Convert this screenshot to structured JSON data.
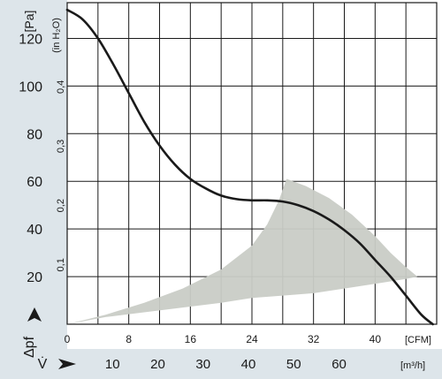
{
  "chart_data": {
    "type": "line",
    "title": "",
    "pressure_unit": "[Pa]",
    "inh2o_unit": "(in H₂O)",
    "xlabel_cfm_unit": "[CFM]",
    "xlabel_m3h_unit": "[m³/h]",
    "ylabel_symbol": "Δpf",
    "xlabel_symbol": "V̇",
    "xlim": [
      0,
      48
    ],
    "ylim": [
      0,
      135
    ],
    "x_ticks_cfm": [
      "0",
      "8",
      "16",
      "24",
      "32",
      "40"
    ],
    "x_ticks_cfm_values": [
      0,
      8,
      16,
      24,
      32,
      40
    ],
    "x_ticks_m3h": [
      "10",
      "20",
      "30",
      "40",
      "50",
      "60"
    ],
    "x_ticks_m3h_values": [
      10,
      20,
      30,
      40,
      50,
      60
    ],
    "y_ticks_pa": [
      "20",
      "40",
      "60",
      "80",
      "100",
      "120"
    ],
    "y_ticks_pa_values": [
      20,
      40,
      60,
      80,
      100,
      120
    ],
    "y_ticks_inh2o": [
      "0,1",
      "0,2",
      "0,3",
      "0,4"
    ],
    "y_ticks_inh2o_values": [
      0.1,
      0.2,
      0.3,
      0.4
    ],
    "grid": true,
    "series": [
      {
        "x": [
          0,
          2,
          4,
          6,
          8,
          10,
          12,
          14,
          16,
          18,
          20,
          22,
          24,
          26,
          28,
          30,
          32,
          34,
          36,
          38,
          40,
          42,
          44,
          46,
          47.5
        ],
        "y": [
          132,
          128,
          120,
          109,
          97,
          85,
          75,
          67,
          61,
          57,
          54,
          52.5,
          52,
          52,
          51.5,
          50,
          47.5,
          44,
          39.5,
          34,
          27,
          20,
          12,
          4,
          0
        ]
      }
    ],
    "shaded_region": {
      "color": "#c9ccc6",
      "x": [
        0,
        5,
        10,
        15,
        20,
        24,
        26,
        27.5,
        28.5,
        31,
        34,
        37,
        40,
        42,
        44,
        45.5,
        44,
        40,
        36,
        32,
        28,
        24,
        20,
        15,
        10,
        5,
        0
      ],
      "y": [
        0,
        4,
        9,
        15,
        23,
        33,
        42,
        52,
        61,
        58,
        53,
        46,
        37,
        30,
        24,
        20,
        19,
        17,
        15,
        13,
        12,
        11,
        9,
        7,
        5,
        3,
        0
      ]
    },
    "colors": {
      "curve": "#1a1a1a",
      "panel": "#dde5ea",
      "grid": "#1a1a1a"
    }
  }
}
